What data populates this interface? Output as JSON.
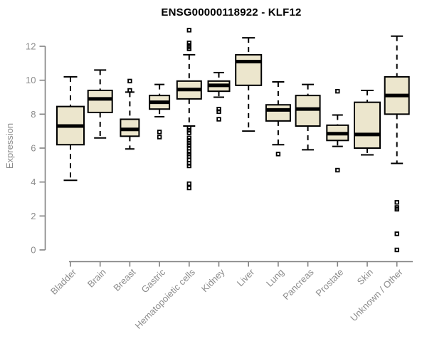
{
  "page": {
    "background": "#ffffff"
  },
  "chart_data": {
    "type": "boxplot",
    "title": "ENSG00000118922 - KLF12",
    "ylabel": "Expression",
    "xlabel": "",
    "ylim": [
      0,
      12
    ],
    "yticks": [
      0,
      2,
      4,
      6,
      8,
      10,
      12
    ],
    "grid": false,
    "legend_position": "none",
    "colors": {
      "box_fill": "#ece6cd",
      "box_border": "#000000",
      "median": "#000000",
      "whisker": "#000000",
      "axis": "#808080",
      "tick_label": "#8c8c8c",
      "title": "#000000"
    },
    "categories": [
      "Bladder",
      "Brain",
      "Breast",
      "Gastric",
      "Hematopoietic cells",
      "Kidney",
      "Liver",
      "Lung",
      "Pancreas",
      "Prostate",
      "Skin",
      "Unknown / Other"
    ],
    "series": [
      {
        "category": "Bladder",
        "low": 4.1,
        "q1": 6.2,
        "median": 7.3,
        "q3": 8.45,
        "high": 10.2,
        "outliers": [],
        "width": 38
      },
      {
        "category": "Brain",
        "low": 6.6,
        "q1": 8.1,
        "median": 8.9,
        "q3": 9.4,
        "high": 10.6,
        "outliers": [],
        "width": 34
      },
      {
        "category": "Breast",
        "low": 5.95,
        "q1": 6.7,
        "median": 7.1,
        "q3": 7.7,
        "high": 9.3,
        "outliers": [
          9.95,
          9.4
        ],
        "width": 26
      },
      {
        "category": "Gastric",
        "low": 7.85,
        "q1": 8.3,
        "median": 8.7,
        "q3": 9.1,
        "high": 9.75,
        "outliers": [
          6.95,
          6.65
        ],
        "width": 28
      },
      {
        "category": "Hematopoietic cells",
        "low": 7.3,
        "q1": 8.9,
        "median": 9.45,
        "q3": 9.95,
        "high": 11.5,
        "outliers": [
          12.95,
          12.2,
          12.05,
          11.95,
          11.85,
          7.2,
          7.05,
          6.9,
          6.6,
          6.45,
          6.3,
          6.15,
          6.0,
          5.8,
          5.65,
          5.5,
          5.3,
          5.1,
          4.95,
          3.9,
          3.65
        ],
        "width": 34
      },
      {
        "category": "Kidney",
        "low": 9.0,
        "q1": 9.35,
        "median": 9.7,
        "q3": 9.95,
        "high": 10.45,
        "outliers": [
          8.3,
          8.15,
          7.7
        ],
        "width": 30
      },
      {
        "category": "Liver",
        "low": 7.0,
        "q1": 9.7,
        "median": 11.1,
        "q3": 11.5,
        "high": 12.5,
        "outliers": [],
        "width": 36
      },
      {
        "category": "Lung",
        "low": 6.2,
        "q1": 7.6,
        "median": 8.25,
        "q3": 8.55,
        "high": 9.9,
        "outliers": [
          5.65
        ],
        "width": 34
      },
      {
        "category": "Pancreas",
        "low": 5.9,
        "q1": 7.3,
        "median": 8.3,
        "q3": 9.1,
        "high": 9.75,
        "outliers": [],
        "width": 34
      },
      {
        "category": "Prostate",
        "low": 6.1,
        "q1": 6.45,
        "median": 6.85,
        "q3": 7.35,
        "high": 7.95,
        "outliers": [
          9.35,
          4.7
        ],
        "width": 30
      },
      {
        "category": "Skin",
        "low": 5.6,
        "q1": 6.0,
        "median": 6.8,
        "q3": 8.7,
        "high": 9.4,
        "outliers": [],
        "width": 36
      },
      {
        "category": "Unknown / Other",
        "low": 5.1,
        "q1": 8.0,
        "median": 9.1,
        "q3": 10.2,
        "high": 12.6,
        "outliers": [
          2.8,
          2.5,
          2.4,
          0.95,
          0.0
        ],
        "width": 34
      }
    ]
  }
}
